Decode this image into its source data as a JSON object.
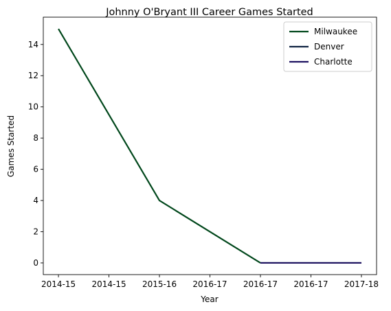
{
  "chart_data": {
    "type": "line",
    "title": "Johnny O'Bryant III Career Games Started",
    "xlabel": "Year",
    "ylabel": "Games Started",
    "categories": [
      "2014-15",
      "2014-15",
      "2015-16",
      "2016-17",
      "2016-17",
      "2016-17",
      "2017-18"
    ],
    "xticks": [
      0,
      1,
      2,
      3,
      4,
      5,
      6
    ],
    "ylim": [
      -0.75,
      15.75
    ],
    "yticks": [
      0,
      2,
      4,
      6,
      8,
      10,
      12,
      14
    ],
    "grid": false,
    "legend_position": "top-right",
    "series": [
      {
        "name": "Milwaukee",
        "color": "#00471b",
        "x": [
          0,
          2,
          4
        ],
        "values": [
          15,
          4,
          0
        ]
      },
      {
        "name": "Denver",
        "color": "#0e2240",
        "x": [
          4,
          6
        ],
        "values": [
          0,
          0
        ]
      },
      {
        "name": "Charlotte",
        "color": "#1d1160",
        "x": [
          4,
          6
        ],
        "values": [
          0,
          0
        ]
      }
    ]
  }
}
